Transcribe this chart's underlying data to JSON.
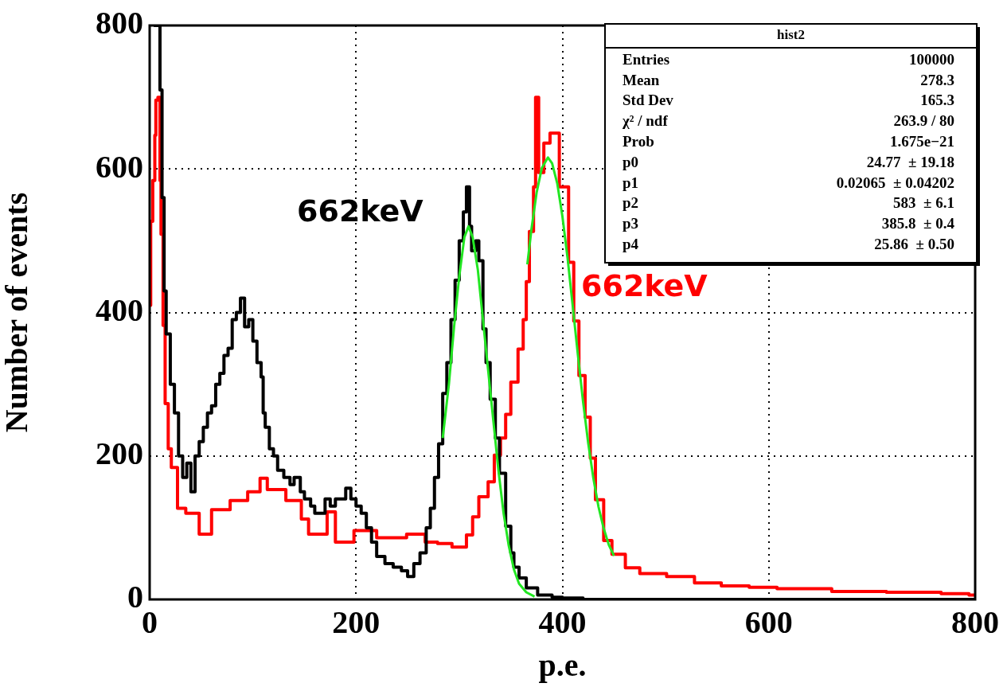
{
  "chart_data": {
    "type": "step",
    "xlabel": "p.e.",
    "ylabel": "Number of events",
    "xlim": [
      0,
      800
    ],
    "xticks": [
      0,
      200,
      400,
      600,
      800
    ],
    "ylim": [
      0,
      800
    ],
    "yticks": [
      0,
      200,
      400,
      600,
      800
    ],
    "grid": true,
    "legend": false,
    "series": [
      {
        "type": "step",
        "color": "#000000",
        "x": [
          4,
          8,
          10,
          12,
          14,
          16,
          20,
          24,
          28,
          32,
          36,
          40,
          44,
          48,
          52,
          56,
          60,
          64,
          68,
          72,
          76,
          80,
          84,
          88,
          92,
          96,
          100,
          104,
          108,
          110,
          112,
          116,
          120,
          124,
          130,
          136,
          140,
          146,
          150,
          156,
          160,
          170,
          175,
          180,
          190,
          195,
          200,
          205,
          210,
          215,
          220,
          228,
          236,
          244,
          250,
          256,
          262,
          268,
          272,
          276,
          280,
          284,
          288,
          292,
          296,
          300,
          304,
          307,
          310,
          312,
          316,
          319,
          323,
          326,
          330,
          335,
          339,
          345,
          350,
          353,
          358,
          365,
          376,
          390,
          400,
          420,
          800
        ],
        "values": [
          800,
          800,
          710,
          560,
          430,
          370,
          300,
          260,
          200,
          170,
          190,
          150,
          200,
          220,
          240,
          260,
          270,
          300,
          315,
          340,
          350,
          390,
          400,
          420,
          380,
          390,
          360,
          330,
          310,
          260,
          240,
          210,
          200,
          180,
          170,
          160,
          170,
          150,
          140,
          130,
          120,
          140,
          130,
          140,
          155,
          140,
          130,
          120,
          100,
          80,
          60,
          50,
          45,
          40,
          32,
          50,
          65,
          100,
          127,
          170,
          217,
          287,
          330,
          390,
          445,
          500,
          540,
          575,
          520,
          486,
          500,
          472,
          377,
          330,
          279,
          225,
          176,
          102,
          65,
          45,
          30,
          16,
          6,
          3,
          2,
          0,
          0
        ]
      },
      {
        "type": "step",
        "color": "#ff0000",
        "x": [
          0,
          1,
          3,
          5,
          6,
          8,
          10,
          11,
          13,
          15,
          18,
          21,
          27,
          35,
          48,
          60,
          78,
          95,
          107,
          114,
          132,
          147,
          154,
          172,
          180,
          198,
          220,
          249,
          267,
          279,
          293,
          307,
          313,
          319,
          328,
          334,
          340,
          345,
          350,
          357,
          362,
          365,
          368,
          372,
          374,
          377,
          382,
          388,
          397,
          406,
          411,
          416,
          422,
          427,
          432,
          440,
          448,
          461,
          475,
          501,
          528,
          554,
          581,
          608,
          661,
          714,
          767,
          794,
          800
        ],
        "values": [
          410,
          527,
          584,
          647,
          696,
          700,
          584,
          509,
          382,
          273,
          210,
          184,
          127,
          120,
          91,
          125,
          138,
          150,
          169,
          153,
          138,
          112,
          91,
          122,
          80,
          96,
          86,
          91,
          80,
          78,
          73,
          90,
          115,
          143,
          164,
          201,
          225,
          258,
          303,
          349,
          390,
          443,
          513,
          575,
          700,
          595,
          636,
          650,
          575,
          470,
          388,
          312,
          254,
          197,
          139,
          82,
          63,
          44,
          36,
          32,
          23,
          19,
          17,
          15,
          11,
          10,
          8,
          6,
          6
        ]
      },
      {
        "type": "line",
        "color": "#22e622",
        "x": [
          284,
          290,
          295,
          300,
          305,
          309,
          313,
          318,
          323,
          328,
          333,
          338,
          343,
          348,
          353,
          358,
          365,
          373
        ],
        "values": [
          225,
          300,
          380,
          450,
          505,
          520,
          505,
          460,
          390,
          320,
          250,
          180,
          120,
          75,
          42,
          22,
          10,
          4
        ]
      },
      {
        "type": "line",
        "color": "#22e622",
        "x": [
          366,
          370,
          375,
          380,
          386,
          390,
          395,
          400,
          405,
          410,
          415,
          420,
          425,
          430,
          435,
          440,
          445,
          450
        ],
        "values": [
          467,
          516,
          567,
          601,
          616,
          608,
          580,
          534,
          476,
          409,
          341,
          276,
          218,
          169,
          129,
          99,
          76,
          61
        ]
      }
    ],
    "annotations": [
      "662keV",
      "662keV",
      "hist2",
      "Entries",
      "100000",
      "Mean",
      "278.3",
      "Std Dev",
      "165.3",
      "χ² / ndf",
      "263.9 / 80",
      "Prob",
      "1.675e−21",
      "p0",
      "24.77  ± 19.18",
      "p1",
      "0.02065  ± 0.04202",
      "p2",
      "583  ± 6.1",
      "p3",
      "385.8  ± 0.4",
      "p4",
      "25.86  ± 0.50"
    ]
  }
}
